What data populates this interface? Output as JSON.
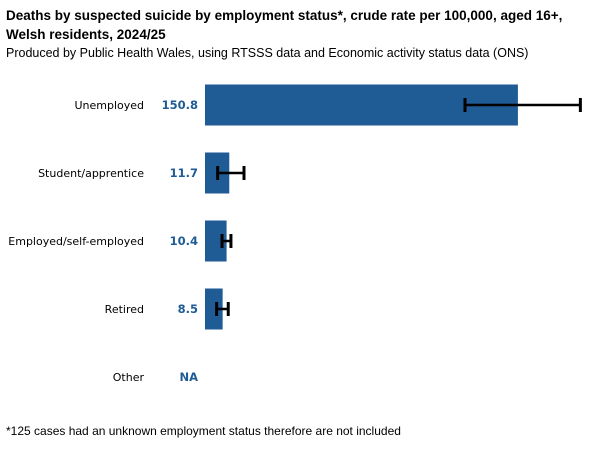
{
  "chart_data": {
    "type": "bar",
    "orientation": "horizontal",
    "title": "Deaths by suspected suicide by employment status*, crude rate per 100,000, aged 16+, Welsh residents, 2024/25",
    "subtitle": "Produced by Public Health Wales, using RTSSS data and Economic activity status data (ONS)",
    "footnote": "*125 cases had an unknown employment status therefore are not included",
    "categories": [
      "Unemployed",
      "Student/apprentice",
      "Employed/self-employed",
      "Retired",
      "Other"
    ],
    "values": [
      150.8,
      11.7,
      10.4,
      8.5,
      null
    ],
    "labels": [
      "150.8",
      "11.7",
      "10.4",
      "8.5",
      "NA"
    ],
    "ci_lower": [
      125.3,
      6.1,
      8.2,
      5.6,
      null
    ],
    "ci_upper": [
      180.9,
      18.8,
      12.5,
      11.2,
      null
    ],
    "xlim": [
      0,
      190
    ],
    "grid": false,
    "bar_color": "#1f5b94",
    "label_color": "#1f5b94",
    "errorbar_color": "#000000"
  }
}
